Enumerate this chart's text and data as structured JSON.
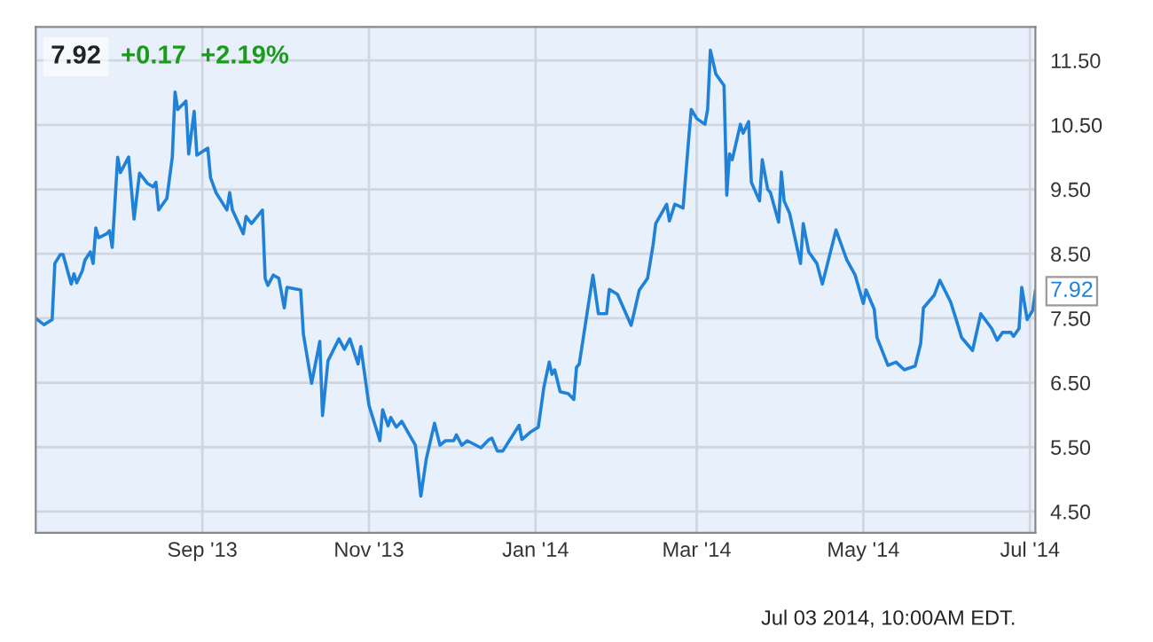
{
  "chart_data": {
    "type": "line",
    "title": "7.92",
    "subtitle": "+0.17  +2.19%",
    "x": [
      "2013-07-02",
      "2013-07-05",
      "2013-07-08",
      "2013-07-09",
      "2013-07-11",
      "2013-07-12",
      "2013-07-15",
      "2013-07-16",
      "2013-07-17",
      "2013-07-19",
      "2013-07-20",
      "2013-07-22",
      "2013-07-23",
      "2013-07-24",
      "2013-07-25",
      "2013-07-28",
      "2013-07-29",
      "2013-07-30",
      "2013-08-01",
      "2013-08-02",
      "2013-08-05",
      "2013-08-07",
      "2013-08-09",
      "2013-08-12",
      "2013-08-14",
      "2013-08-15",
      "2013-08-16",
      "2013-08-19",
      "2013-08-21",
      "2013-08-22",
      "2013-08-23",
      "2013-08-26",
      "2013-08-27",
      "2013-08-29",
      "2013-08-30",
      "2013-09-03",
      "2013-09-04",
      "2013-09-06",
      "2013-09-10",
      "2013-09-11",
      "2013-09-12",
      "2013-09-16",
      "2013-09-17",
      "2013-09-19",
      "2013-09-23",
      "2013-09-24",
      "2013-09-25",
      "2013-09-27",
      "2013-09-29",
      "2013-10-01",
      "2013-10-02",
      "2013-10-07",
      "2013-10-08",
      "2013-10-11",
      "2013-10-14",
      "2013-10-15",
      "2013-10-17",
      "2013-10-21",
      "2013-10-23",
      "2013-10-25",
      "2013-10-28",
      "2013-10-29",
      "2013-10-30",
      "2013-11-01",
      "2013-11-05",
      "2013-11-06",
      "2013-11-08",
      "2013-11-09",
      "2013-11-11",
      "2013-11-13",
      "2013-11-18",
      "2013-11-20",
      "2013-11-22",
      "2013-11-25",
      "2013-11-27",
      "2013-11-29",
      "2013-12-02",
      "2013-12-03",
      "2013-12-05",
      "2013-12-07",
      "2013-12-12",
      "2013-12-15",
      "2013-12-16",
      "2013-12-18",
      "2013-12-20",
      "2013-12-23",
      "2013-12-26",
      "2013-12-27",
      "2013-12-30",
      "2014-01-02",
      "2014-01-04",
      "2014-01-06",
      "2014-01-07",
      "2014-01-08",
      "2014-01-10",
      "2014-01-13",
      "2014-01-15",
      "2014-01-16",
      "2014-01-17",
      "2014-01-22",
      "2014-01-24",
      "2014-01-27",
      "2014-01-28",
      "2014-01-31",
      "2014-02-05",
      "2014-02-08",
      "2014-02-11",
      "2014-02-13",
      "2014-02-14",
      "2014-02-18",
      "2014-02-19",
      "2014-02-21",
      "2014-02-24",
      "2014-02-26",
      "2014-02-27",
      "2014-03-01",
      "2014-03-04",
      "2014-03-05",
      "2014-03-06",
      "2014-03-08",
      "2014-03-11",
      "2014-03-12",
      "2014-03-13",
      "2014-03-14",
      "2014-03-17",
      "2014-03-18",
      "2014-03-20",
      "2014-03-21",
      "2014-03-24",
      "2014-03-25",
      "2014-03-27",
      "2014-03-28",
      "2014-03-31",
      "2014-04-01",
      "2014-04-02",
      "2014-04-04",
      "2014-04-08",
      "2014-04-09",
      "2014-04-11",
      "2014-04-14",
      "2014-04-16",
      "2014-04-21",
      "2014-04-25",
      "2014-04-28",
      "2014-05-01",
      "2014-05-02",
      "2014-05-05",
      "2014-05-06",
      "2014-05-10",
      "2014-05-13",
      "2014-05-16",
      "2014-05-20",
      "2014-05-22",
      "2014-05-23",
      "2014-05-27",
      "2014-05-29",
      "2014-06-02",
      "2014-06-04",
      "2014-06-06",
      "2014-06-10",
      "2014-06-13",
      "2014-06-17",
      "2014-06-19",
      "2014-06-21",
      "2014-06-24",
      "2014-06-25",
      "2014-06-27",
      "2014-06-28",
      "2014-06-30",
      "2014-07-02",
      "2014-07-03"
    ],
    "series": [
      {
        "color": "#1f82d8",
        "values": [
          7.5,
          7.4,
          7.48,
          8.35,
          8.49,
          8.49,
          8.03,
          8.19,
          8.05,
          8.23,
          8.4,
          8.53,
          8.35,
          8.9,
          8.75,
          8.81,
          8.86,
          8.6,
          10.0,
          9.76,
          10.0,
          9.04,
          9.75,
          9.59,
          9.54,
          9.61,
          9.18,
          9.36,
          10.0,
          11.01,
          10.74,
          10.87,
          10.05,
          10.71,
          10.03,
          10.14,
          9.68,
          9.45,
          9.18,
          9.45,
          9.18,
          8.81,
          9.08,
          8.97,
          9.18,
          8.12,
          8.01,
          8.17,
          8.12,
          7.66,
          7.98,
          7.94,
          7.25,
          6.49,
          7.14,
          5.99,
          6.84,
          7.18,
          7.02,
          7.18,
          6.79,
          7.06,
          6.76,
          6.15,
          5.6,
          6.08,
          5.83,
          5.96,
          5.81,
          5.9,
          5.53,
          4.74,
          5.32,
          5.87,
          5.53,
          5.6,
          5.6,
          5.69,
          5.53,
          5.6,
          5.49,
          5.62,
          5.64,
          5.44,
          5.44,
          5.64,
          5.84,
          5.62,
          5.73,
          5.81,
          6.42,
          6.82,
          6.63,
          6.7,
          6.36,
          6.33,
          6.24,
          6.74,
          6.79,
          8.17,
          7.57,
          7.57,
          7.95,
          7.87,
          7.39,
          7.94,
          8.12,
          8.63,
          8.97,
          9.27,
          9.01,
          9.27,
          9.21,
          10.25,
          10.74,
          10.6,
          10.51,
          10.74,
          11.66,
          11.29,
          11.11,
          9.41,
          10.05,
          9.96,
          10.51,
          10.37,
          10.55,
          9.61,
          9.32,
          9.96,
          9.5,
          9.45,
          8.99,
          9.77,
          9.32,
          9.13,
          8.35,
          8.97,
          8.53,
          8.35,
          8.03,
          8.87,
          8.4,
          8.17,
          7.73,
          7.94,
          7.64,
          7.2,
          6.77,
          6.82,
          6.7,
          6.76,
          7.11,
          7.66,
          7.86,
          8.09,
          7.75,
          7.48,
          7.2,
          7.0,
          7.57,
          7.34,
          7.16,
          7.28,
          7.28,
          7.22,
          7.34,
          7.98,
          7.48,
          7.62,
          7.92
        ]
      }
    ],
    "xlim": [
      "2013-07-02",
      "2014-07-03"
    ],
    "xticks": [
      {
        "value": "2013-09-01",
        "label": "Sep '13"
      },
      {
        "value": "2013-11-01",
        "label": "Nov '13"
      },
      {
        "value": "2014-01-01",
        "label": "Jan '14"
      },
      {
        "value": "2014-03-01",
        "label": "Mar '14"
      },
      {
        "value": "2014-05-01",
        "label": "May '14"
      },
      {
        "value": "2014-07-01",
        "label": "Jul '14"
      }
    ],
    "ylim": [
      4.17,
      12.02
    ],
    "yticks": [
      {
        "value": 4.5,
        "label": "4.50"
      },
      {
        "value": 5.5,
        "label": "5.50"
      },
      {
        "value": 6.5,
        "label": "6.50"
      },
      {
        "value": 7.5,
        "label": "7.50"
      },
      {
        "value": 8.5,
        "label": "8.50"
      },
      {
        "value": 9.5,
        "label": "9.50"
      },
      {
        "value": 10.5,
        "label": "10.50"
      },
      {
        "value": 11.5,
        "label": "11.50"
      }
    ],
    "grid": true,
    "annotations": [
      {
        "text": "7.92",
        "x": "2014-07-03",
        "y": 7.92
      },
      "Jul 03 2014, 10:00AM EDT."
    ]
  }
}
